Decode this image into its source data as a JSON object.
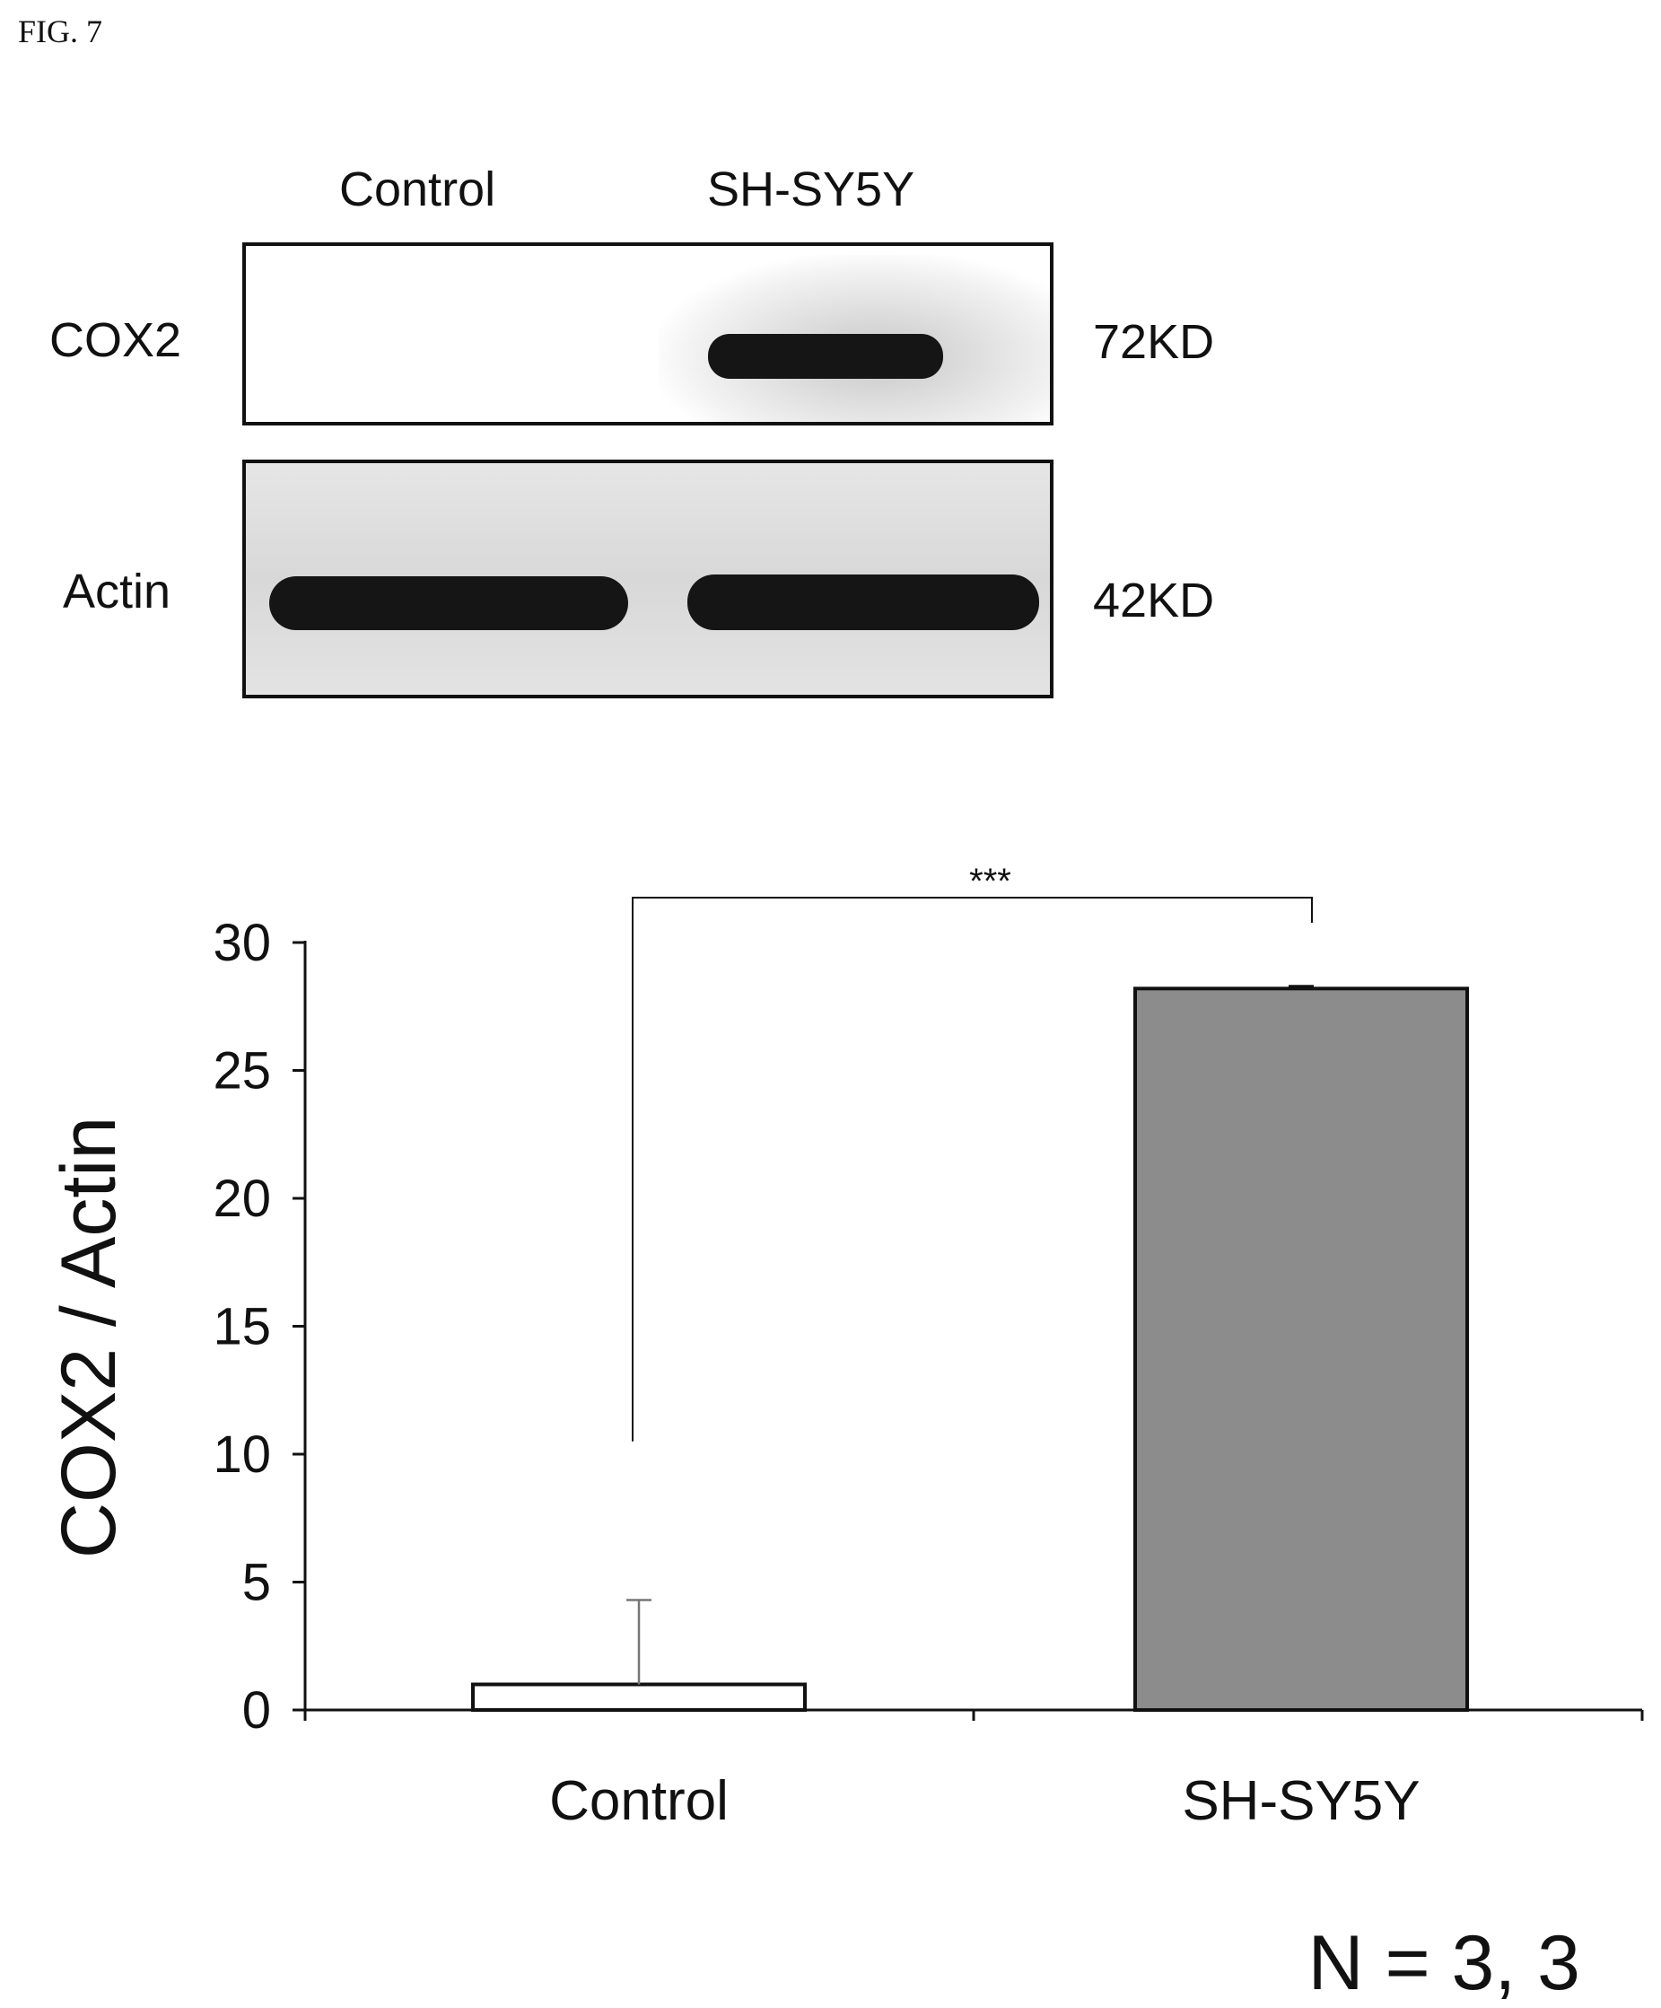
{
  "figure": {
    "label": "FIG. 7",
    "n_label": "N = 3, 3"
  },
  "blot": {
    "lanes": [
      "Control",
      "SH-SY5Y"
    ],
    "rows": [
      {
        "protein": "COX2",
        "size": "72KD",
        "band_intensity": [
          0,
          1
        ]
      },
      {
        "protein": "Actin",
        "size": "42KD",
        "band_intensity": [
          1,
          1
        ]
      }
    ],
    "colors": {
      "band": "#151515",
      "frame": "#111111"
    }
  },
  "chart_data": {
    "type": "bar",
    "categories": [
      "Control",
      "SH-SY5Y"
    ],
    "values": [
      1,
      28.2
    ],
    "error_upper": [
      3.3,
      0.1
    ],
    "ylabel": "COX2 / Actin",
    "ylim": [
      0,
      30
    ],
    "yticks": [
      0,
      5,
      10,
      15,
      20,
      25,
      30
    ],
    "significance": {
      "label": "***",
      "between": [
        "Control",
        "SH-SY5Y"
      ]
    },
    "bar_colors": [
      "#ffffff",
      "#8c8c8c"
    ],
    "grid": false,
    "legend": "none"
  }
}
